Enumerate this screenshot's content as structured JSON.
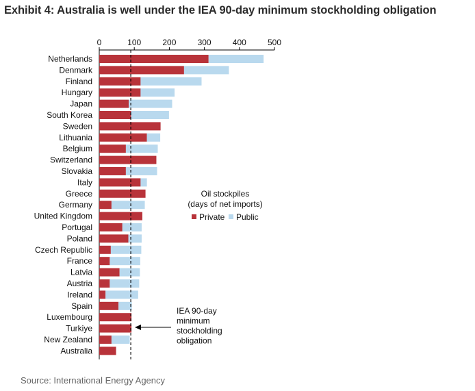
{
  "title": "Exhibit 4: Australia is well under the IEA 90-day minimum stockholding obligation",
  "source": "Source: International Energy Agency",
  "chart_data": {
    "type": "bar",
    "orientation": "horizontal",
    "stacked": true,
    "title": "Exhibit 4: Australia is well under the IEA 90-day minimum stockholding obligation",
    "categories": [
      "Netherlands",
      "Denmark",
      "Finland",
      "Hungary",
      "Japan",
      "South Korea",
      "Sweden",
      "Lithuania",
      "Belgium",
      "Switzerland",
      "Slovakia",
      "Italy",
      "Greece",
      "Germany",
      "United Kingdom",
      "Portugal",
      "Poland",
      "Czech Republic",
      "France",
      "Latvia",
      "Austria",
      "Ireland",
      "Spain",
      "Luxembourg",
      "Turkiye",
      "New Zealand",
      "Australia"
    ],
    "series": [
      {
        "name": "Private",
        "color": "#b8333a",
        "values": [
          312,
          242,
          118,
          118,
          84,
          91,
          175,
          136,
          76,
          163,
          76,
          118,
          132,
          35,
          123,
          66,
          83,
          33,
          30,
          58,
          30,
          18,
          55,
          92,
          92,
          35,
          48
        ]
      },
      {
        "name": "Public",
        "color": "#b9d9ee",
        "values": [
          157,
          128,
          174,
          97,
          124,
          108,
          0,
          38,
          91,
          0,
          89,
          18,
          0,
          95,
          0,
          55,
          38,
          87,
          87,
          58,
          84,
          93,
          38,
          0,
          0,
          52,
          0
        ]
      }
    ],
    "xlim": [
      0,
      500
    ],
    "xticks": [
      0,
      100,
      200,
      300,
      400,
      500
    ],
    "grid": false,
    "legend": {
      "title_line1": "Oil stockpiles",
      "title_line2": "(days of net imports)",
      "position": "right",
      "labels": [
        "Private",
        "Public"
      ]
    },
    "reference_line": {
      "value": 90,
      "style": "dashed",
      "color": "#000000"
    },
    "annotation": {
      "lines": [
        "IEA 90-day",
        "minimum",
        "stockholding",
        "obligation"
      ]
    }
  }
}
